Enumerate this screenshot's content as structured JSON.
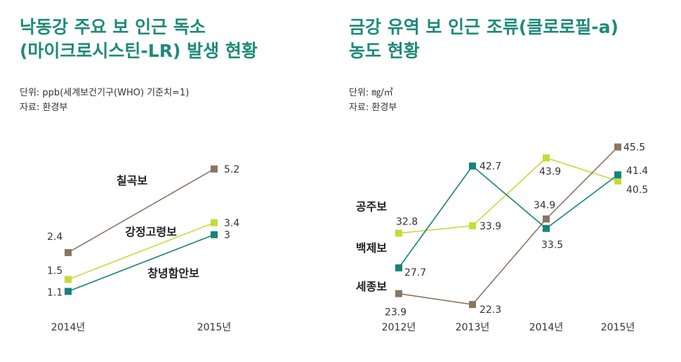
{
  "left": {
    "title_line1": "낙동강 주요 보 인근 독소",
    "title_line2": "(마이크로시스틴-LR) 발생 현황",
    "unit": "단위: ppb(세계보건기구(WHO) 기준치=1)",
    "source": "자료: 환경부"
  },
  "right": {
    "title_line1": "금강 유역 보 인근 조류(클로로필-a)",
    "title_line2": "농도 현황",
    "unit": "단위: ㎎/㎥",
    "source": "자료: 환경부"
  },
  "colors": {
    "brown": "#8a7563",
    "lime": "#c6da3a",
    "teal": "#14847b",
    "title": "#1f8a7a"
  },
  "chart_data": [
    {
      "type": "line",
      "x": [
        "2014년",
        "2015년"
      ],
      "series": [
        {
          "name": "칠곡보",
          "values": [
            2.4,
            5.2
          ],
          "color": "#8a7563",
          "value_labels": [
            "2.4",
            "5.2"
          ]
        },
        {
          "name": "강정고령보",
          "values": [
            1.5,
            3.4
          ],
          "color": "#c6da3a",
          "value_labels": [
            "1.5",
            "3.4"
          ]
        },
        {
          "name": "창녕함안보",
          "values": [
            1.1,
            3.0
          ],
          "color": "#14847b",
          "value_labels": [
            "1.1",
            "3"
          ]
        }
      ]
    },
    {
      "type": "line",
      "x": [
        "2012년",
        "2013년",
        "2014년",
        "2015년"
      ],
      "series": [
        {
          "name": "공주보",
          "values": [
            32.8,
            33.9,
            43.9,
            40.5
          ],
          "color": "#c6da3a",
          "value_labels": [
            "32.8",
            "33.9",
            "43.9",
            "40.5"
          ]
        },
        {
          "name": "백제보",
          "values": [
            27.7,
            42.7,
            33.5,
            41.4
          ],
          "color": "#14847b",
          "value_labels": [
            "27.7",
            "42.7",
            "33.5",
            "41.4"
          ]
        },
        {
          "name": "세종보",
          "values": [
            23.9,
            22.3,
            34.9,
            45.5
          ],
          "color": "#8a7563",
          "value_labels": [
            "23.9",
            "22.3",
            "34.9",
            "45.5"
          ]
        }
      ]
    }
  ]
}
